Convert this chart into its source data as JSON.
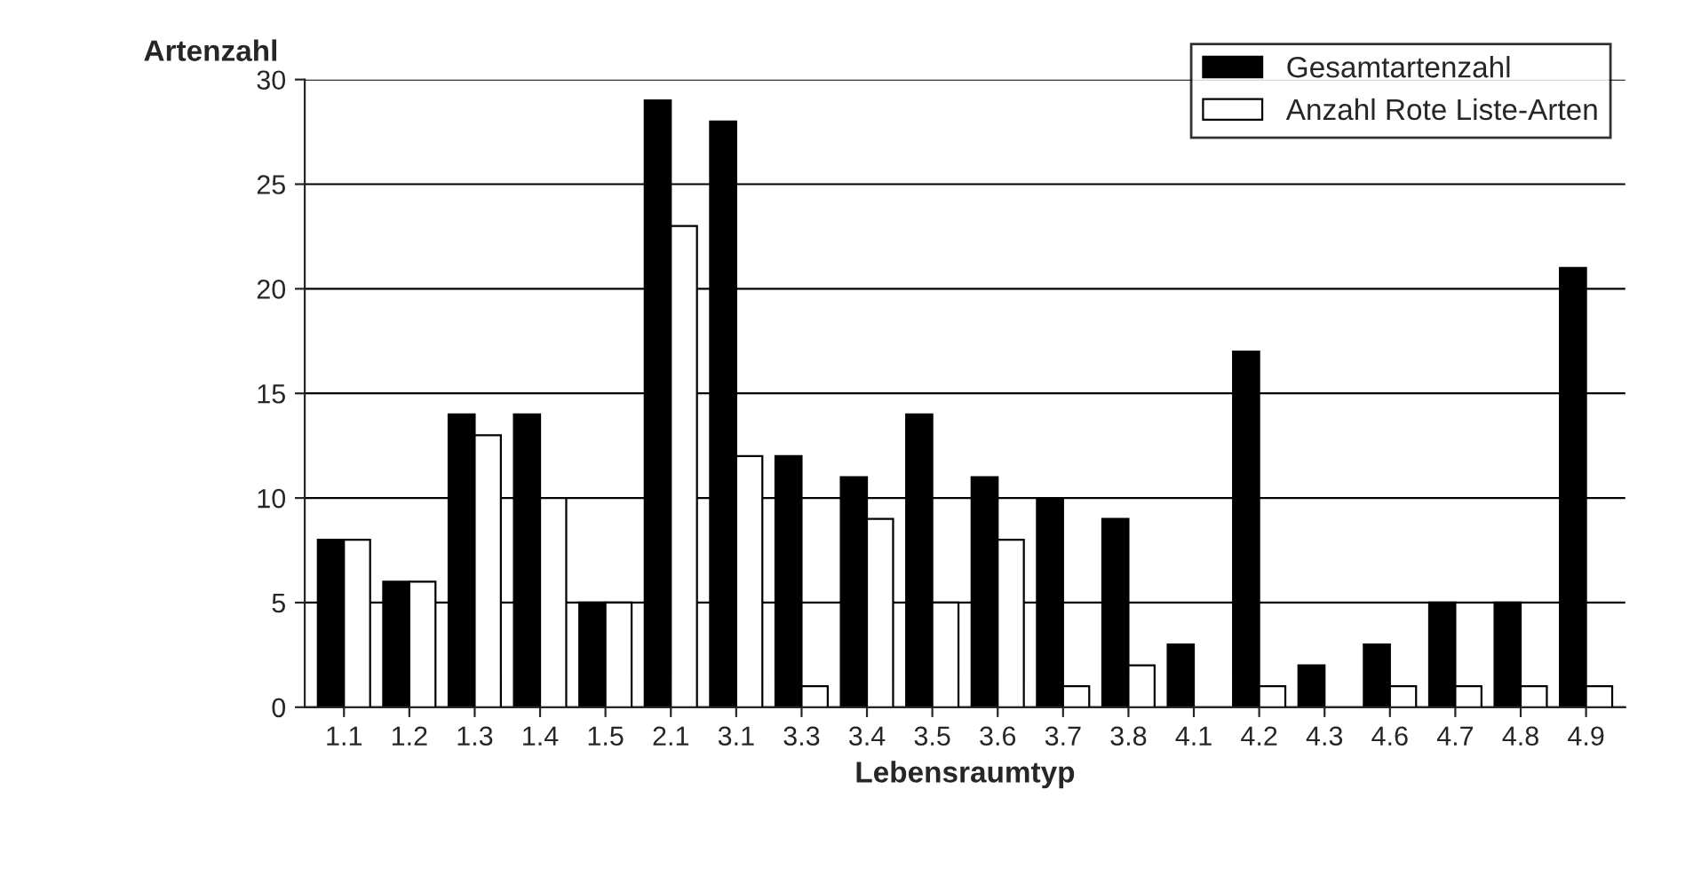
{
  "chart_data": {
    "type": "bar",
    "xlabel": "Lebensraumtyp",
    "ylabel": "Artenzahl",
    "categories": [
      "1.1",
      "1.2",
      "1.3",
      "1.4",
      "1.5",
      "2.1",
      "3.1",
      "3.3",
      "3.4",
      "3.5",
      "3.6",
      "3.7",
      "3.8",
      "4.1",
      "4.2",
      "4.3",
      "4.6",
      "4.7",
      "4.8",
      "4.9"
    ],
    "series": [
      {
        "name": "Gesamtartenzahl",
        "color": "#000000",
        "values": [
          8,
          6,
          14,
          14,
          5,
          29,
          28,
          12,
          11,
          14,
          11,
          10,
          9,
          3,
          17,
          2,
          3,
          5,
          5,
          21
        ]
      },
      {
        "name": "Anzahl Rote Liste-Arten",
        "color": "#ffffff",
        "values": [
          8,
          6,
          13,
          10,
          5,
          23,
          12,
          1,
          9,
          5,
          8,
          1,
          2,
          0,
          1,
          0,
          1,
          1,
          1,
          1
        ]
      }
    ],
    "ylim": [
      0,
      30
    ],
    "yticks": [
      0,
      5,
      10,
      15,
      20,
      25,
      30
    ],
    "grid": "y",
    "legend": "top right"
  }
}
